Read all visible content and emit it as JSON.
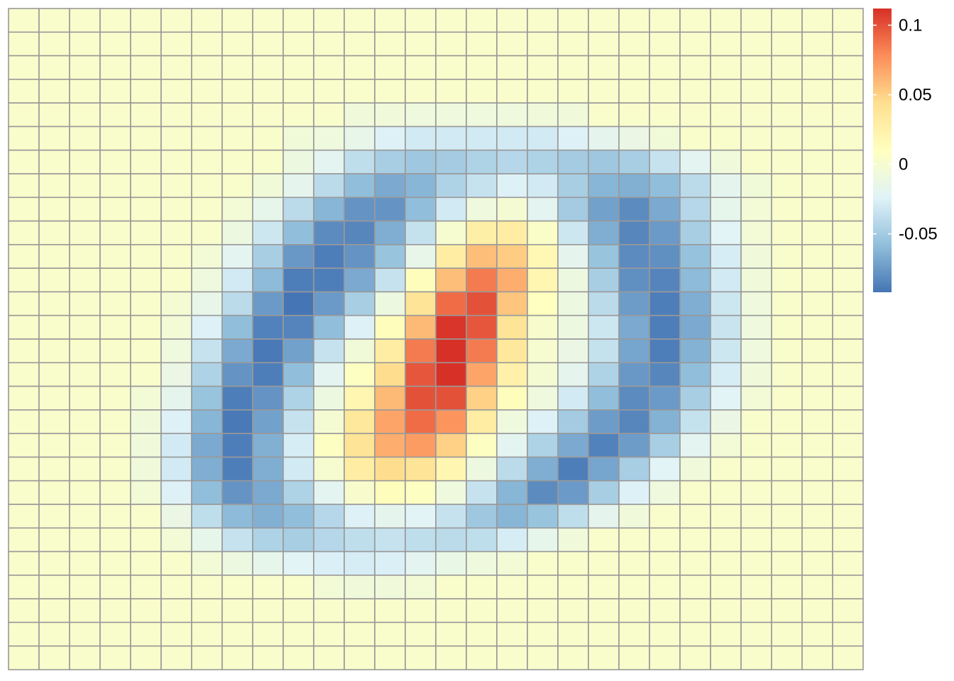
{
  "chart_data": {
    "type": "heatmap",
    "title": "",
    "xlabel": "",
    "ylabel": "",
    "n_rows": 28,
    "n_cols": 28,
    "value_range": [
      -0.092,
      0.112
    ],
    "cell_border_color": "#999999",
    "colorbar": {
      "placement": "right",
      "ticks": [
        {
          "value": 0.1,
          "label": "0.1"
        },
        {
          "value": 0.05,
          "label": "0.05"
        },
        {
          "value": 0,
          "label": "0"
        },
        {
          "value": -0.05,
          "label": "-0.05"
        }
      ],
      "palette": [
        "#4575B4",
        "#91BFDB",
        "#E0F3F8",
        "#FFFFBF",
        "#FEE090",
        "#FC8D59",
        "#D73027"
      ]
    },
    "values": [
      [
        0.003,
        0.003,
        0.003,
        0.003,
        0.003,
        0.003,
        0.003,
        0.003,
        0.003,
        0.003,
        0.003,
        0.003,
        0.003,
        0.003,
        0.003,
        0.003,
        0.003,
        0.003,
        0.003,
        0.003,
        0.003,
        0.003,
        0.003,
        0.003,
        0.003,
        0.003,
        0.003,
        0.003
      ],
      [
        0.003,
        0.003,
        0.003,
        0.003,
        0.003,
        0.003,
        0.003,
        0.003,
        0.003,
        0.003,
        0.003,
        0.003,
        0.003,
        0.003,
        0.003,
        0.003,
        0.003,
        0.003,
        0.003,
        0.003,
        0.003,
        0.003,
        0.003,
        0.003,
        0.003,
        0.003,
        0.003,
        0.003
      ],
      [
        0.003,
        0.003,
        0.003,
        0.003,
        0.003,
        0.003,
        0.003,
        0.003,
        0.003,
        0.003,
        0.003,
        0.003,
        0.003,
        0.003,
        0.003,
        0.003,
        0.003,
        0.003,
        0.003,
        0.003,
        0.003,
        0.003,
        0.003,
        0.003,
        0.003,
        0.003,
        0.003,
        0.003
      ],
      [
        0.003,
        0.003,
        0.003,
        0.003,
        0.003,
        0.003,
        0.003,
        0.003,
        0.003,
        0.003,
        0.003,
        0.003,
        0.003,
        0.003,
        0.003,
        0.003,
        0.003,
        0.003,
        0.003,
        0.003,
        0.003,
        0.003,
        0.003,
        0.003,
        0.003,
        0.003,
        0.003,
        0.003
      ],
      [
        0.003,
        0.003,
        0.003,
        0.003,
        0.003,
        0.003,
        0.003,
        0.003,
        0.003,
        0.003,
        0.003,
        -0.006,
        -0.006,
        -0.008,
        -0.008,
        -0.008,
        -0.008,
        -0.006,
        -0.006,
        0.003,
        0.003,
        0.003,
        0.003,
        0.003,
        0.003,
        0.003,
        0.003,
        0.003
      ],
      [
        0.003,
        0.003,
        0.003,
        0.003,
        0.003,
        0.003,
        0.003,
        0.003,
        0.003,
        -0.005,
        -0.008,
        -0.015,
        -0.025,
        -0.03,
        -0.03,
        -0.03,
        -0.03,
        -0.03,
        -0.025,
        -0.018,
        -0.012,
        -0.005,
        0.003,
        0.003,
        0.003,
        0.003,
        0.003,
        0.003
      ],
      [
        0.003,
        0.003,
        0.003,
        0.003,
        0.003,
        0.003,
        0.003,
        0.003,
        0.003,
        -0.01,
        -0.02,
        -0.038,
        -0.048,
        -0.052,
        -0.05,
        -0.045,
        -0.042,
        -0.045,
        -0.05,
        -0.052,
        -0.048,
        -0.035,
        -0.02,
        -0.006,
        0.003,
        0.003,
        0.003,
        0.003
      ],
      [
        0.003,
        0.003,
        0.003,
        0.003,
        0.003,
        0.003,
        0.003,
        0.003,
        -0.005,
        -0.018,
        -0.04,
        -0.058,
        -0.068,
        -0.062,
        -0.045,
        -0.035,
        -0.025,
        -0.03,
        -0.048,
        -0.062,
        -0.065,
        -0.058,
        -0.04,
        -0.018,
        -0.005,
        0.003,
        0.003,
        0.003
      ],
      [
        0.003,
        0.003,
        0.003,
        0.003,
        0.003,
        0.003,
        0.003,
        -0.004,
        -0.016,
        -0.04,
        -0.062,
        -0.078,
        -0.078,
        -0.058,
        -0.03,
        -0.008,
        -0.002,
        -0.02,
        -0.05,
        -0.072,
        -0.082,
        -0.068,
        -0.042,
        -0.016,
        -0.004,
        0.003,
        0.003,
        0.003
      ],
      [
        0.003,
        0.003,
        0.003,
        0.003,
        0.003,
        0.003,
        0.003,
        -0.01,
        -0.032,
        -0.058,
        -0.082,
        -0.084,
        -0.066,
        -0.036,
        0.0,
        0.028,
        0.03,
        0.005,
        -0.032,
        -0.066,
        -0.084,
        -0.075,
        -0.048,
        -0.022,
        -0.004,
        0.003,
        0.003,
        0.003
      ],
      [
        0.003,
        0.003,
        0.003,
        0.003,
        0.003,
        0.003,
        -0.004,
        -0.02,
        -0.048,
        -0.076,
        -0.088,
        -0.078,
        -0.055,
        -0.015,
        0.03,
        0.058,
        0.052,
        0.018,
        -0.018,
        -0.055,
        -0.082,
        -0.08,
        -0.056,
        -0.028,
        -0.006,
        0.003,
        0.003,
        0.003
      ],
      [
        0.003,
        0.003,
        0.003,
        0.003,
        0.003,
        0.003,
        -0.008,
        -0.03,
        -0.06,
        -0.088,
        -0.088,
        -0.068,
        -0.035,
        0.012,
        0.058,
        0.085,
        0.065,
        0.02,
        -0.01,
        -0.048,
        -0.08,
        -0.085,
        -0.06,
        -0.03,
        -0.006,
        0.003,
        0.003,
        0.003
      ],
      [
        0.003,
        0.003,
        0.003,
        0.003,
        0.003,
        -0.002,
        -0.015,
        -0.04,
        -0.075,
        -0.092,
        -0.075,
        -0.048,
        -0.01,
        0.04,
        0.09,
        0.1,
        0.055,
        0.01,
        -0.01,
        -0.04,
        -0.074,
        -0.088,
        -0.066,
        -0.032,
        -0.008,
        0.003,
        0.003,
        0.003
      ],
      [
        0.003,
        0.003,
        0.003,
        0.003,
        0.003,
        -0.004,
        -0.025,
        -0.058,
        -0.086,
        -0.085,
        -0.058,
        -0.025,
        0.012,
        0.06,
        0.11,
        0.098,
        0.04,
        0.002,
        -0.01,
        -0.032,
        -0.068,
        -0.088,
        -0.068,
        -0.034,
        -0.008,
        0.003,
        0.003,
        0.003
      ],
      [
        0.003,
        0.003,
        0.003,
        0.003,
        0.003,
        -0.008,
        -0.035,
        -0.068,
        -0.09,
        -0.072,
        -0.035,
        -0.005,
        0.03,
        0.085,
        0.112,
        0.085,
        0.035,
        0.0,
        -0.012,
        -0.036,
        -0.07,
        -0.088,
        -0.064,
        -0.032,
        -0.008,
        0.003,
        0.003,
        0.003
      ],
      [
        0.003,
        0.003,
        0.003,
        0.003,
        0.003,
        -0.012,
        -0.045,
        -0.078,
        -0.088,
        -0.058,
        -0.02,
        0.008,
        0.045,
        0.098,
        0.112,
        0.068,
        0.025,
        -0.002,
        -0.018,
        -0.045,
        -0.076,
        -0.084,
        -0.058,
        -0.028,
        -0.006,
        0.003,
        0.003,
        0.003
      ],
      [
        0.003,
        0.003,
        0.003,
        0.003,
        -0.004,
        -0.018,
        -0.055,
        -0.088,
        -0.078,
        -0.045,
        -0.01,
        0.02,
        0.06,
        0.1,
        0.1,
        0.05,
        0.012,
        -0.008,
        -0.03,
        -0.058,
        -0.082,
        -0.075,
        -0.048,
        -0.022,
        -0.004,
        0.003,
        0.003,
        0.003
      ],
      [
        0.003,
        0.003,
        0.003,
        0.003,
        -0.006,
        -0.025,
        -0.062,
        -0.09,
        -0.072,
        -0.035,
        -0.002,
        0.035,
        0.068,
        0.09,
        0.075,
        0.03,
        -0.008,
        -0.025,
        -0.05,
        -0.074,
        -0.084,
        -0.064,
        -0.036,
        -0.012,
        0.003,
        0.003,
        0.003,
        0.003
      ],
      [
        0.003,
        0.003,
        0.003,
        0.003,
        -0.006,
        -0.03,
        -0.068,
        -0.088,
        -0.065,
        -0.028,
        0.008,
        0.04,
        0.065,
        0.072,
        0.05,
        0.008,
        -0.02,
        -0.045,
        -0.068,
        -0.086,
        -0.074,
        -0.048,
        -0.02,
        -0.004,
        0.003,
        0.003,
        0.003,
        0.003
      ],
      [
        0.003,
        0.003,
        0.003,
        0.003,
        -0.006,
        -0.03,
        -0.066,
        -0.088,
        -0.066,
        -0.03,
        0.0,
        0.03,
        0.045,
        0.04,
        0.02,
        -0.01,
        -0.04,
        -0.066,
        -0.088,
        -0.07,
        -0.048,
        -0.022,
        -0.006,
        0.003,
        0.003,
        0.003,
        0.003,
        0.003
      ],
      [
        0.003,
        0.003,
        0.003,
        0.003,
        -0.004,
        -0.025,
        -0.058,
        -0.078,
        -0.068,
        -0.045,
        -0.02,
        0.002,
        0.012,
        0.008,
        -0.008,
        -0.035,
        -0.062,
        -0.082,
        -0.075,
        -0.048,
        -0.025,
        -0.008,
        0.003,
        0.003,
        0.003,
        0.003,
        0.003,
        0.003
      ],
      [
        0.003,
        0.003,
        0.003,
        0.003,
        0.003,
        -0.012,
        -0.038,
        -0.06,
        -0.065,
        -0.058,
        -0.042,
        -0.025,
        -0.018,
        -0.022,
        -0.035,
        -0.052,
        -0.062,
        -0.055,
        -0.038,
        -0.018,
        -0.006,
        0.003,
        0.003,
        0.003,
        0.003,
        0.003,
        0.003,
        0.003
      ],
      [
        0.003,
        0.003,
        0.003,
        0.003,
        0.003,
        -0.004,
        -0.016,
        -0.035,
        -0.045,
        -0.048,
        -0.042,
        -0.038,
        -0.035,
        -0.038,
        -0.04,
        -0.038,
        -0.028,
        -0.016,
        -0.006,
        0.003,
        0.003,
        0.003,
        0.003,
        0.003,
        0.003,
        0.003,
        0.003,
        0.003
      ],
      [
        0.003,
        0.003,
        0.003,
        0.003,
        0.003,
        0.003,
        -0.004,
        -0.01,
        -0.016,
        -0.022,
        -0.026,
        -0.028,
        -0.026,
        -0.02,
        -0.014,
        -0.008,
        -0.004,
        0.003,
        0.003,
        0.003,
        0.003,
        0.003,
        0.003,
        0.003,
        0.003,
        0.003,
        0.003,
        0.003
      ],
      [
        0.003,
        0.003,
        0.003,
        0.003,
        0.003,
        0.003,
        0.003,
        0.003,
        0.003,
        0.003,
        -0.004,
        -0.006,
        -0.006,
        -0.004,
        0.003,
        0.003,
        0.003,
        0.003,
        0.003,
        0.003,
        0.003,
        0.003,
        0.003,
        0.003,
        0.003,
        0.003,
        0.003,
        0.003
      ],
      [
        0.003,
        0.003,
        0.003,
        0.003,
        0.003,
        0.003,
        0.003,
        0.003,
        0.003,
        0.003,
        0.003,
        0.003,
        0.003,
        0.003,
        0.003,
        0.003,
        0.003,
        0.003,
        0.003,
        0.003,
        0.003,
        0.003,
        0.003,
        0.003,
        0.003,
        0.003,
        0.003,
        0.003
      ],
      [
        0.003,
        0.003,
        0.003,
        0.003,
        0.003,
        0.003,
        0.003,
        0.003,
        0.003,
        0.003,
        0.003,
        0.003,
        0.003,
        0.003,
        0.003,
        0.003,
        0.003,
        0.003,
        0.003,
        0.003,
        0.003,
        0.003,
        0.003,
        0.003,
        0.003,
        0.003,
        0.003,
        0.003
      ],
      [
        0.003,
        0.003,
        0.003,
        0.003,
        0.003,
        0.003,
        0.003,
        0.003,
        0.003,
        0.003,
        0.003,
        0.003,
        0.003,
        0.003,
        0.003,
        0.003,
        0.003,
        0.003,
        0.003,
        0.003,
        0.003,
        0.003,
        0.003,
        0.003,
        0.003,
        0.003,
        0.003,
        0.003
      ]
    ]
  }
}
